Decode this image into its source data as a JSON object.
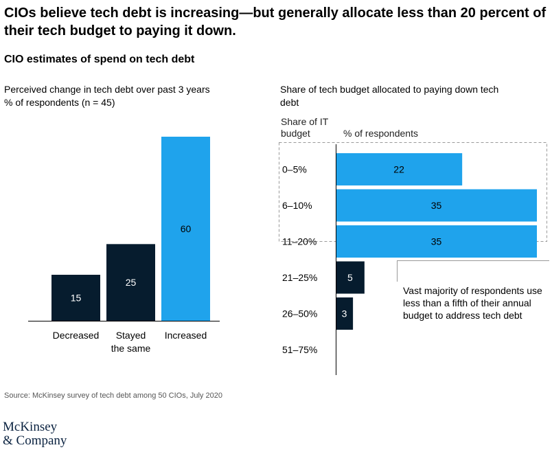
{
  "title": "CIOs believe tech debt is increasing—but generally allocate less than 20 percent of their tech budget to paying it down.",
  "subtitle": "CIO estimates of spend on tech debt",
  "source": "Source: McKinsey survey of tech debt among 50 CIOs, July 2020",
  "logo": [
    "McKinsey",
    "& Company"
  ],
  "colors": {
    "dark": "#061c2e",
    "accent": "#1fa3ec"
  },
  "chart_data": [
    {
      "type": "bar",
      "title": "Perceived change in tech debt over past 3 years",
      "subtitle": "% of respondents (n = 45)",
      "categories": [
        "Decreased",
        "Stayed the same",
        "Increased"
      ],
      "category_lines": [
        [
          "Decreased"
        ],
        [
          "Stayed",
          "the same"
        ],
        [
          "Increased"
        ]
      ],
      "values": [
        15,
        25,
        60
      ],
      "colors": [
        "dark",
        "dark",
        "accent"
      ],
      "ylim": [
        0,
        60
      ]
    },
    {
      "type": "bar",
      "orientation": "horizontal",
      "title": "Share of tech budget allocated to paying down tech debt",
      "ylabel": "Share of IT budget",
      "xlabel": "% of respondents",
      "categories": [
        "0–5%",
        "6–10%",
        "11–20%",
        "21–25%",
        "26–50%",
        "51–75%"
      ],
      "values": [
        22,
        35,
        35,
        5,
        3,
        0
      ],
      "colors": [
        "accent",
        "accent",
        "accent",
        "dark",
        "dark",
        "dark"
      ],
      "xlim": [
        0,
        35
      ],
      "highlight": [
        "0–5%",
        "6–10%",
        "11–20%"
      ],
      "annotation": "Vast majority of respondents use less than a fifth of their annual budget to address tech debt"
    }
  ]
}
